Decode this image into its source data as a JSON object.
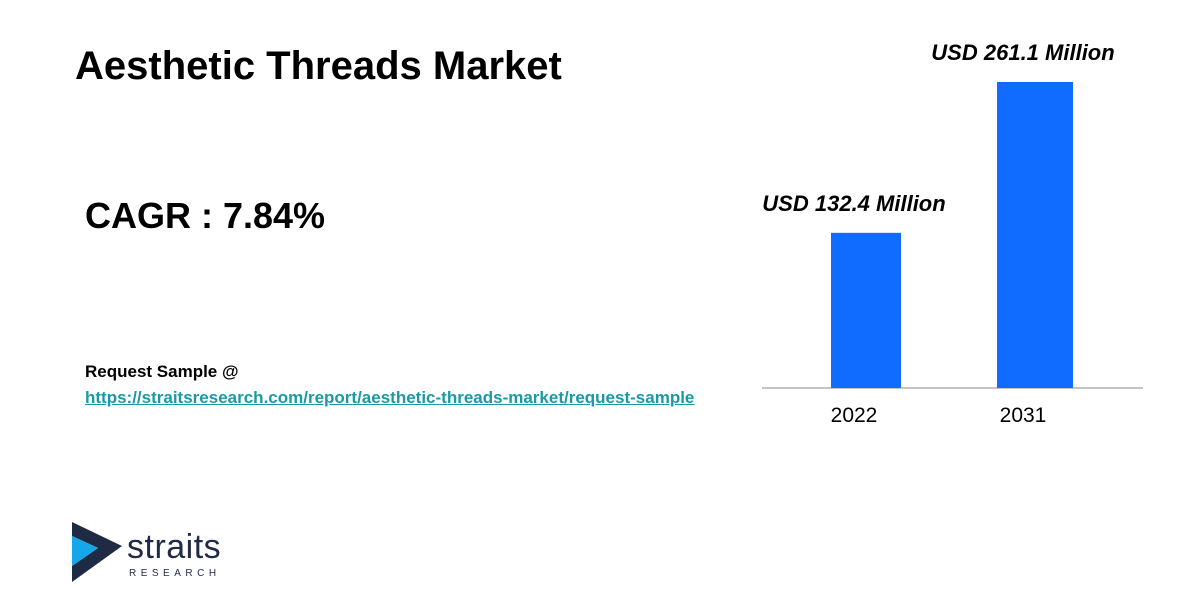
{
  "chart_data": {
    "type": "bar",
    "title": "Aesthetic Threads Market",
    "categories": [
      "2022",
      "2031"
    ],
    "values": [
      132.4,
      261.1
    ],
    "value_labels": [
      "USD 132.4 Million",
      "USD 261.1 Million"
    ],
    "color": "#0f6cff"
  },
  "cagr": "CAGR : 7.84%",
  "request": {
    "label": "Request Sample @",
    "link": "https://straitsresearch.com/report/aesthetic-threads-market/request-sample"
  },
  "logo": {
    "name": "straits",
    "tagline": "RESEARCH"
  }
}
